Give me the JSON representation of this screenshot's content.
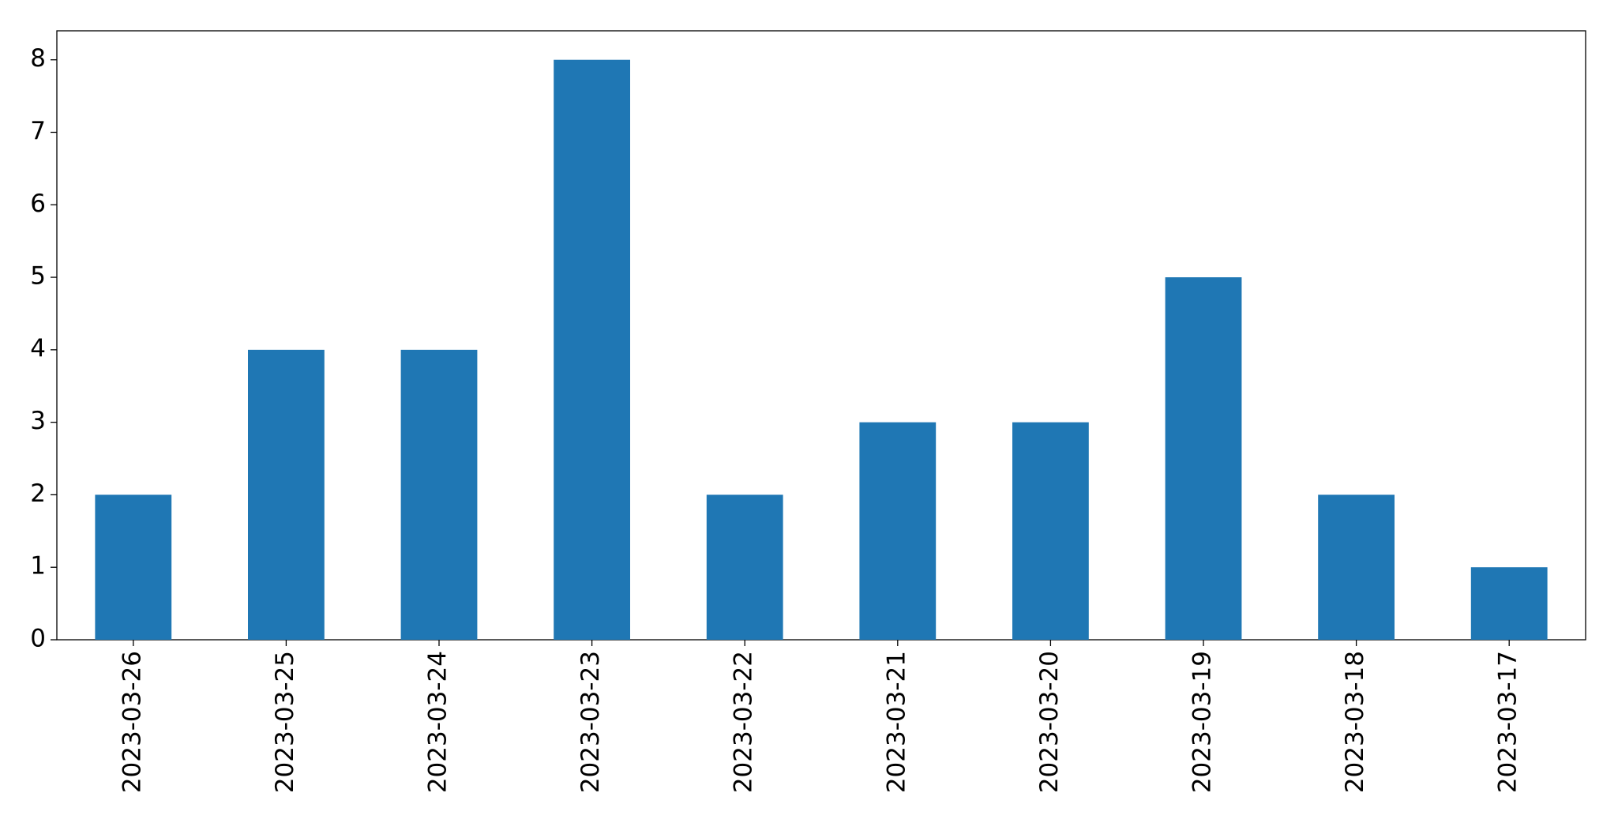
{
  "chart_data": {
    "type": "bar",
    "categories": [
      "2023-03-26",
      "2023-03-25",
      "2023-03-24",
      "2023-03-23",
      "2023-03-22",
      "2023-03-21",
      "2023-03-20",
      "2023-03-19",
      "2023-03-18",
      "2023-03-17"
    ],
    "values": [
      2,
      4,
      4,
      8,
      2,
      3,
      3,
      5,
      2,
      1
    ],
    "color": "#1f77b4",
    "ylim": [
      0,
      8.4
    ],
    "yticks": [
      0,
      1,
      2,
      3,
      4,
      5,
      6,
      7,
      8
    ],
    "grid": false
  }
}
